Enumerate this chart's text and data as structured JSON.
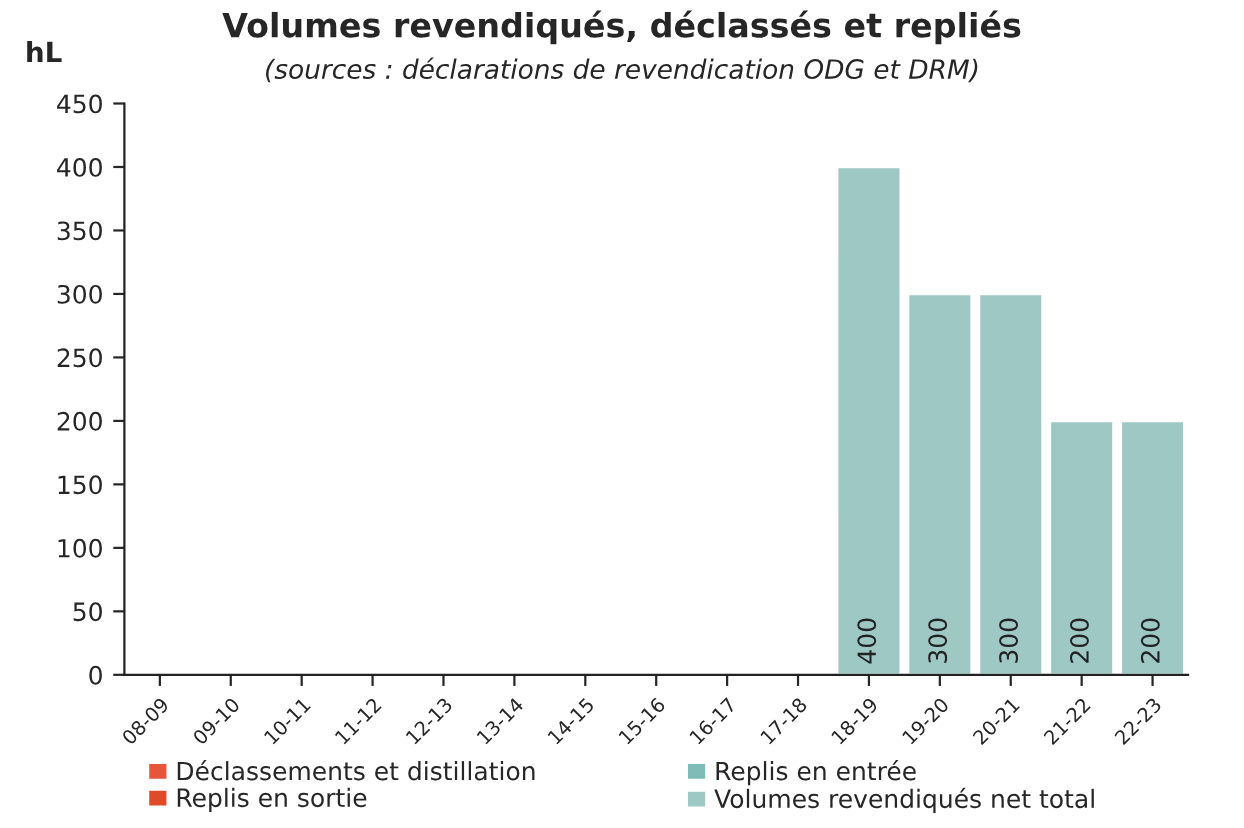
{
  "chart_data": {
    "type": "bar",
    "title": "Volumes revendiqués, déclassés et repliés",
    "subtitle": "(sources : déclarations de revendication ODG et DRM)",
    "ylabel": "hL",
    "categories": [
      "08-09",
      "09-10",
      "10-11",
      "11-12",
      "12-13",
      "13-14",
      "14-15",
      "15-16",
      "16-17",
      "17-18",
      "18-19",
      "19-20",
      "20-21",
      "21-22",
      "22-23"
    ],
    "series": [
      {
        "name": "Déclassements et distillation",
        "color": "#e8553a",
        "values": [
          null,
          null,
          null,
          null,
          null,
          null,
          null,
          null,
          null,
          null,
          null,
          null,
          null,
          null,
          null
        ]
      },
      {
        "name": "Replis en sortie",
        "color": "#e04a2a",
        "values": [
          null,
          null,
          null,
          null,
          null,
          null,
          null,
          null,
          null,
          null,
          null,
          null,
          null,
          null,
          null
        ]
      },
      {
        "name": "Replis en entrée",
        "color": "#7fbcb8",
        "values": [
          null,
          null,
          null,
          null,
          null,
          null,
          null,
          null,
          null,
          null,
          null,
          null,
          null,
          null,
          null
        ]
      },
      {
        "name": "Volumes revendiqués net total",
        "color": "#9dc8c4",
        "values": [
          null,
          null,
          null,
          null,
          null,
          null,
          null,
          null,
          null,
          null,
          400,
          300,
          300,
          200,
          200
        ]
      }
    ],
    "ylim": [
      0,
      450
    ],
    "yticks": [
      0,
      50,
      100,
      150,
      200,
      250,
      300,
      350,
      400,
      450
    ],
    "data_labels": true,
    "grid": false,
    "legend": "bottom"
  }
}
